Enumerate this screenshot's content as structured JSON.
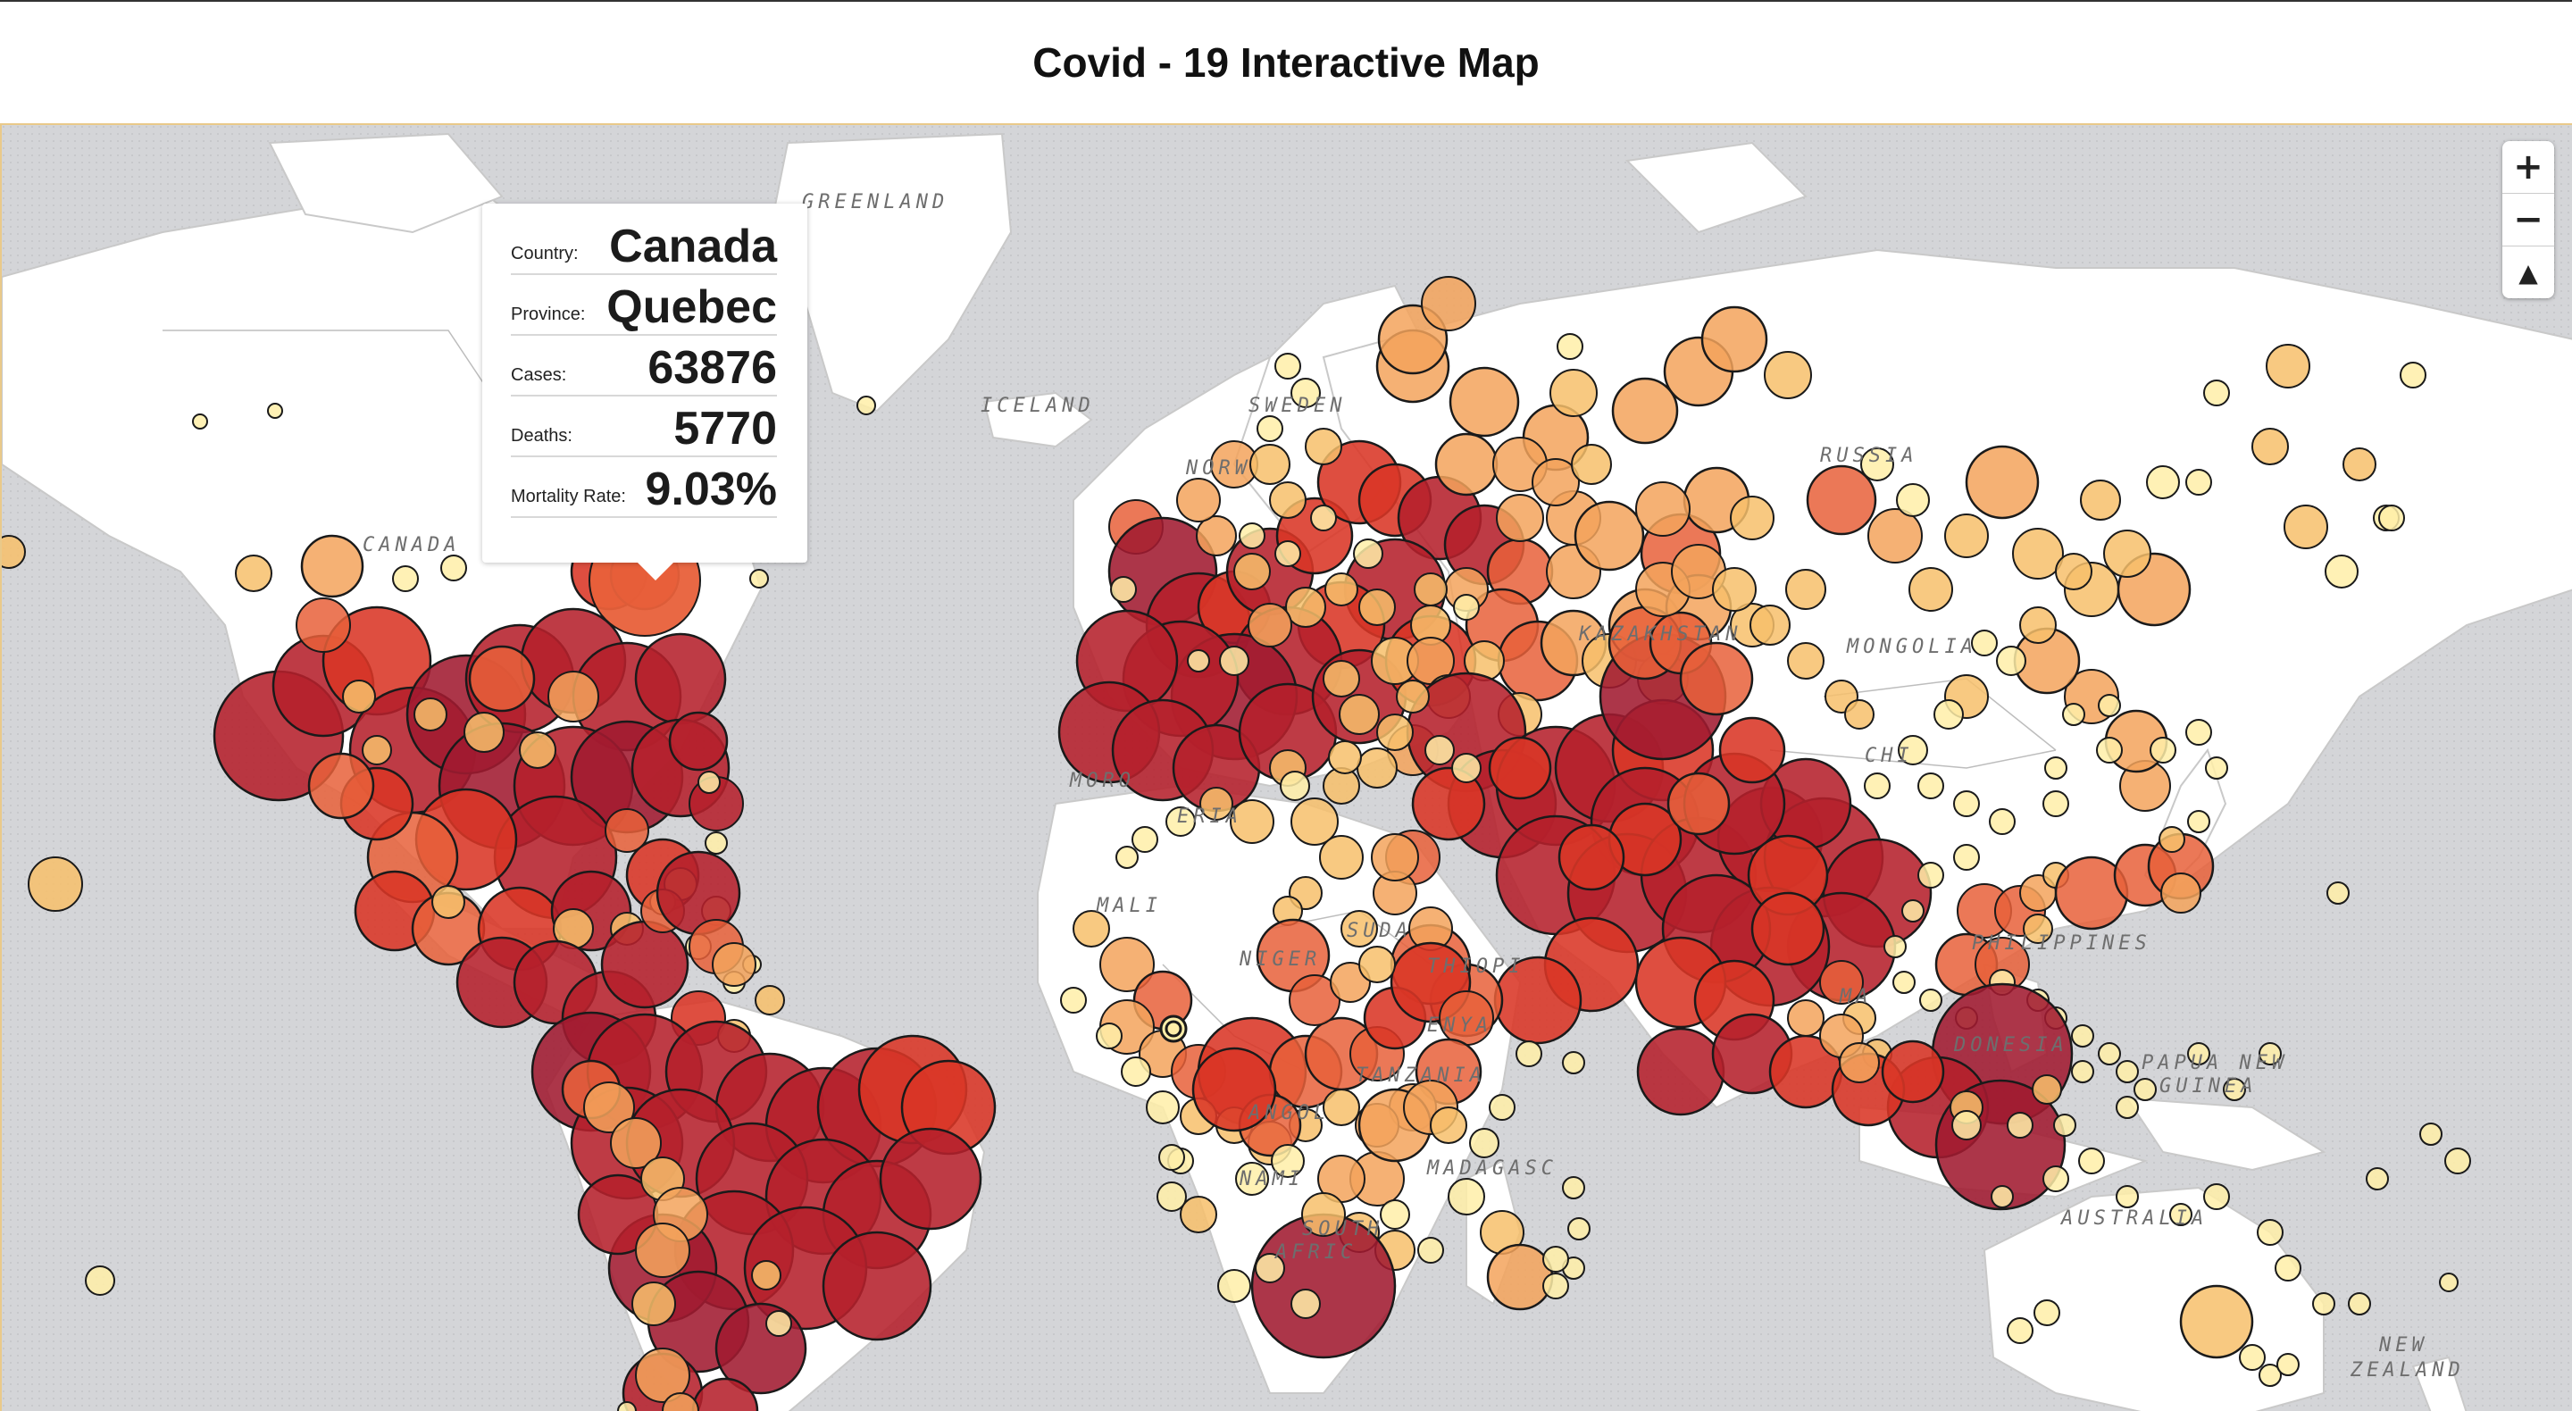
{
  "app": {
    "title": "Covid - 19 Interactive Map"
  },
  "map": {
    "colors": {
      "ocean": "#d2d3d6",
      "land": "#ffffff",
      "border": "#bdbdbd"
    },
    "labels": {
      "greenland": "GREENLAND",
      "iceland": "ICELAND",
      "sweden": "SWEDEN",
      "norway": "NORW",
      "russia": "RUSSIA",
      "canada": "CANADA",
      "kazakhstan": "KAZAKHSTAN",
      "mongolia": "MONGOLIA",
      "china": "CHI",
      "philippines": "PHILIPPINES",
      "papua": "PAPUA NEW",
      "guinea": "GUINEA",
      "indonesia": "DONESIA",
      "australia": "AUSTRALIA",
      "newzealand_a": "NEW",
      "newzealand_b": "ZEALAND",
      "algeria": "ERIA",
      "mali": "MALI",
      "sudan": "SUDA",
      "ethiopia": "THIOPI",
      "kenya": "ENYA",
      "tanzania": "TANZANIA",
      "angola": "ANGOL",
      "namibia": "NAMI",
      "madagascar": "MADAGASC",
      "south_africa_a": "SOUTH",
      "south_africa_b": "AFRIC",
      "niger": "NIGER",
      "morocco": "MORO",
      "malaysia": "MA"
    }
  },
  "zoom": {
    "in": "+",
    "out": "−",
    "reset": "▲"
  },
  "tooltip": {
    "country_label": "Country:",
    "country": "Canada",
    "province_label": "Province:",
    "province": "Quebec",
    "cases_label": "Cases:",
    "cases": "63876",
    "deaths_label": "Deaths:",
    "deaths": "5770",
    "mortality_label": "Mortality Rate:",
    "mortality": "9.03%"
  },
  "legend_colors": {
    "low": "#ffeea8",
    "mid_low": "#f7c06b",
    "mid": "#f3a35c",
    "mid_high": "#e8603a",
    "high": "#d93525",
    "very_high": "#b5202b",
    "max": "#a01a30"
  }
}
